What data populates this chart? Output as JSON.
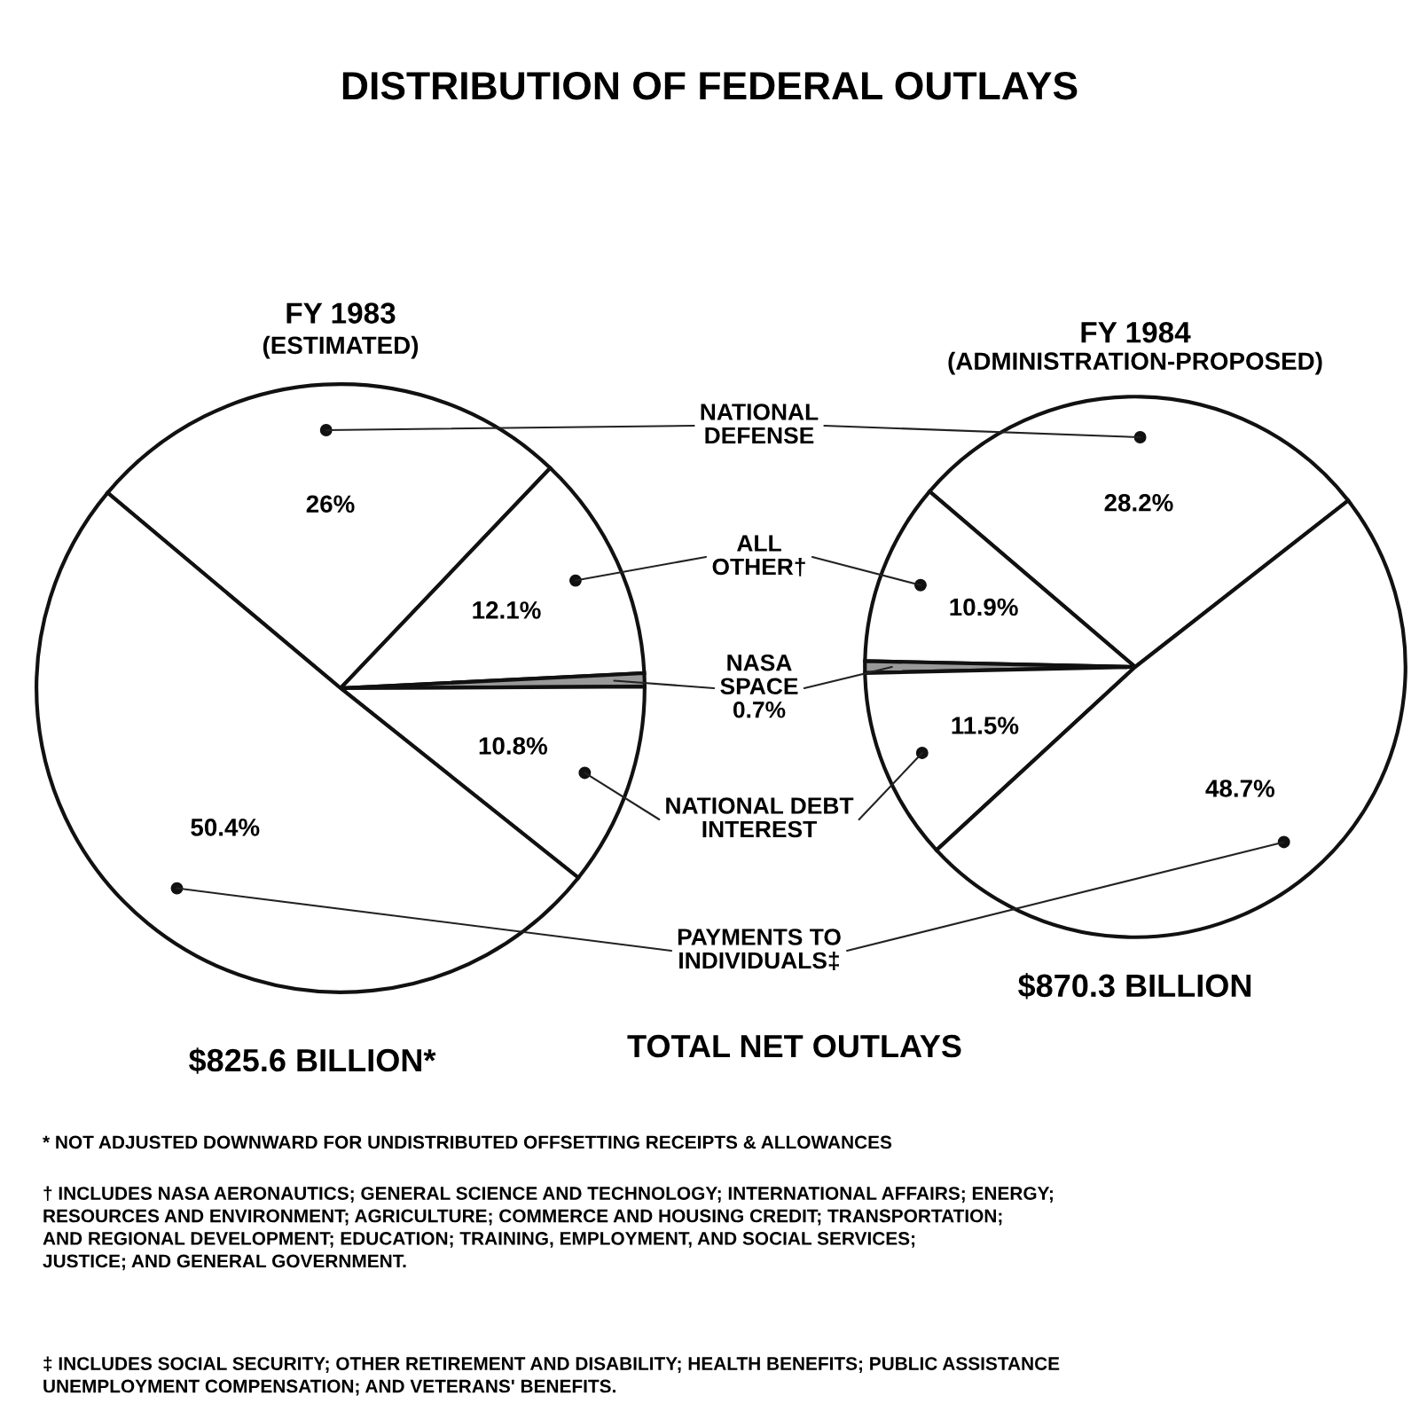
{
  "chart_data": [
    {
      "type": "pie",
      "title": "FY 1983",
      "subtitle": "(ESTIMATED)",
      "categories": [
        "NATIONAL\nDEFENSE",
        "ALL\nOTHER†",
        "NASA\nSPACE",
        "NATIONAL DEBT\nINTEREST",
        "PAYMENTS TO\nINDIVIDUALS‡"
      ],
      "values": [
        26,
        12.1,
        0.7,
        10.8,
        50.4
      ],
      "value_labels": [
        "26%",
        "12.1%",
        "0.7%",
        "10.8%",
        "50.4%"
      ],
      "colors": [
        "#ffffff",
        "#ffffff",
        "#999999",
        "#ffffff",
        "#ffffff"
      ],
      "legend": false,
      "annotations": [
        "DISTRIBUTION OF FEDERAL OUTLAYS",
        "$825.6 BILLION*",
        "TOTAL NET OUTLAYS",
        "* NOT ADJUSTED DOWNWARD FOR UNDISTRIBUTED OFFSETTING RECEIPTS & ALLOWANCES",
        "† INCLUDES NASA AERONAUTICS; GENERAL SCIENCE AND TECHNOLOGY; INTERNATIONAL AFFAIRS; ENERGY;\nRESOURCES AND ENVIRONMENT; AGRICULTURE; COMMERCE AND HOUSING CREDIT; TRANSPORTATION;\nAND REGIONAL DEVELOPMENT; EDUCATION; TRAINING, EMPLOYMENT, AND SOCIAL SERVICES;\nJUSTICE; AND GENERAL GOVERNMENT.",
        "‡ INCLUDES SOCIAL SECURITY; OTHER RETIREMENT AND DISABILITY; HEALTH BENEFITS; PUBLIC ASSISTANCE\nUNEMPLOYMENT COMPENSATION; AND VETERANS' BENEFITS."
      ]
    },
    {
      "type": "pie",
      "title": "FY 1984",
      "subtitle": "(ADMINISTRATION-PROPOSED)",
      "categories": [
        null,
        null,
        null,
        null,
        null
      ],
      "values": [
        28.2,
        10.9,
        0.7,
        11.5,
        48.7
      ],
      "value_labels": [
        "28.2%",
        "10.9%",
        null,
        "11.5%",
        "48.7%"
      ],
      "colors": [
        "#ffffff",
        "#ffffff",
        "#999999",
        "#ffffff",
        "#ffffff"
      ],
      "legend": false,
      "annotations": [
        "$870.3 BILLION"
      ]
    }
  ]
}
